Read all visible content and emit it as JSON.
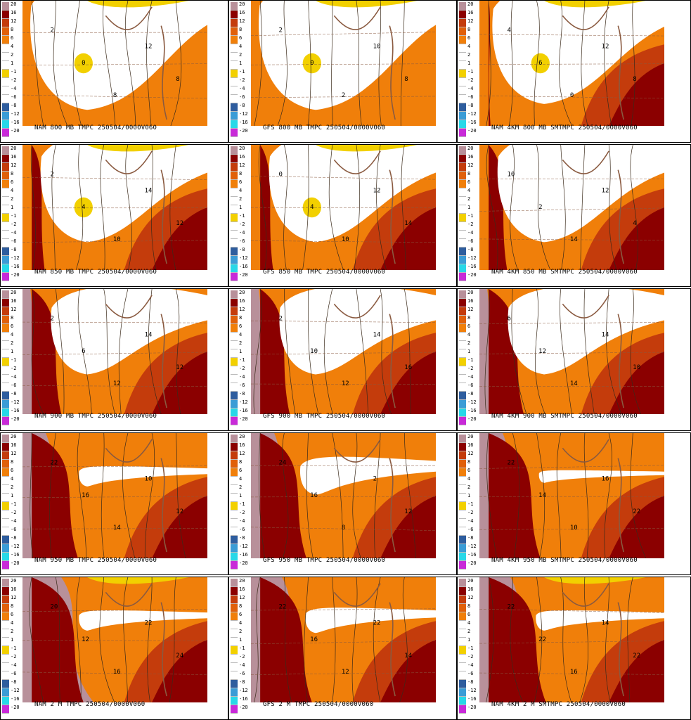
{
  "legend_levels": [
    "20",
    "16",
    "12",
    "8",
    "6",
    "4",
    "2",
    "1",
    "-1",
    "-2",
    "-4",
    "-6",
    "-8",
    "-12",
    "-16",
    "-20"
  ],
  "legend_colors": [
    "#b8909a",
    "#8b0000",
    "#c43c0c",
    "#e0600a",
    "#f07f0a",
    "#ffffff",
    "#ffffff",
    "#ffffff",
    "#f2d000",
    "#ffffff",
    "#ffffff",
    "#ffffff",
    "#2e5d9e",
    "#3b9cd6",
    "#28d8e8",
    "#c82ad8"
  ],
  "colors": {
    "warm_extreme": "#b8909a",
    "very_hot": "#8b0000",
    "hot": "#c43c0c",
    "warm": "#f07f0a",
    "cold": "#ffffff",
    "freezing": "#f2d000",
    "contour": "#3a2a1a",
    "coastline": "#8a5a40"
  },
  "panels": [
    {
      "caption": "NAM 800 MB TMPC 250504/0000V060",
      "labels": [
        "2",
        "0",
        "8",
        "12",
        "8"
      ],
      "white": 0.55,
      "yellow": true,
      "red": 0.0,
      "pink": 0.0
    },
    {
      "caption": "GFS 800 MB TMPC 250504/0000V060",
      "labels": [
        "2",
        "0",
        "2",
        "10",
        "8"
      ],
      "white": 0.55,
      "yellow": true,
      "red": 0.0,
      "pink": 0.0
    },
    {
      "caption": "NAM 4KM 800 MB SMTMPC 250504/0000V060",
      "labels": [
        "4",
        "6",
        "0",
        "12",
        "8"
      ],
      "white": 0.5,
      "yellow": true,
      "red": 0.1,
      "pink": 0.0
    },
    {
      "caption": "NAM 850 MB TMPC 250504/0000V060",
      "labels": [
        "2",
        "4",
        "10",
        "14",
        "12"
      ],
      "white": 0.45,
      "yellow": true,
      "red": 0.2,
      "pink": 0.0
    },
    {
      "caption": "GFS 850 MB TMPC 250504/0000V060",
      "labels": [
        "0",
        "4",
        "10",
        "12",
        "14"
      ],
      "white": 0.45,
      "yellow": true,
      "red": 0.2,
      "pink": 0.0
    },
    {
      "caption": "NAM 4KM 850 MB SMTMPC 250504/0000V060",
      "labels": [
        "10",
        "2",
        "14",
        "12",
        "4"
      ],
      "white": 0.45,
      "yellow": false,
      "red": 0.25,
      "pink": 0.0
    },
    {
      "caption": "NAM 900 MB TMPC 250504/0000V060",
      "labels": [
        "2",
        "6",
        "12",
        "14",
        "12"
      ],
      "white": 0.35,
      "yellow": false,
      "red": 0.35,
      "pink": 0.05
    },
    {
      "caption": "GFS 900 MB TMPC 250504/0000V060",
      "labels": [
        "2",
        "10",
        "12",
        "14",
        "16"
      ],
      "white": 0.35,
      "yellow": false,
      "red": 0.35,
      "pink": 0.05
    },
    {
      "caption": "NAM 4KM 900 MB SMTMPC 250504/0000V060",
      "labels": [
        "6",
        "12",
        "14",
        "14",
        "10"
      ],
      "white": 0.35,
      "yellow": false,
      "red": 0.4,
      "pink": 0.05
    },
    {
      "caption": "NAM 950 MB TMPC 250504/0000V060",
      "labels": [
        "22",
        "16",
        "14",
        "10",
        "12"
      ],
      "white": 0.08,
      "yellow": false,
      "red": 0.5,
      "pink": 0.15
    },
    {
      "caption": "GFS 950 MB TMPC 250504/0000V060",
      "labels": [
        "24",
        "16",
        "8",
        "2",
        "12"
      ],
      "white": 0.15,
      "yellow": false,
      "red": 0.5,
      "pink": 0.15
    },
    {
      "caption": "NAM 4KM 950 MB SMTMPC 250504/0000V060",
      "labels": [
        "22",
        "14",
        "10",
        "16",
        "22"
      ],
      "white": 0.05,
      "yellow": false,
      "red": 0.55,
      "pink": 0.15
    },
    {
      "caption": "NAM 2 M TMPC 250504/0000V060",
      "labels": [
        "20",
        "12",
        "16",
        "22",
        "24"
      ],
      "white": 0.08,
      "yellow": true,
      "red": 0.55,
      "pink": 0.25
    },
    {
      "caption": "GFS 2 M TMPC 250504/0000V060",
      "labels": [
        "22",
        "16",
        "12",
        "22",
        "14"
      ],
      "white": 0.1,
      "yellow": false,
      "red": 0.55,
      "pink": 0.2
    },
    {
      "caption": "NAM 4KM 2 M SMTMPC 250504/0000V060",
      "labels": [
        "22",
        "22",
        "16",
        "14",
        "22"
      ],
      "white": 0.08,
      "yellow": true,
      "red": 0.6,
      "pink": 0.2
    }
  ]
}
